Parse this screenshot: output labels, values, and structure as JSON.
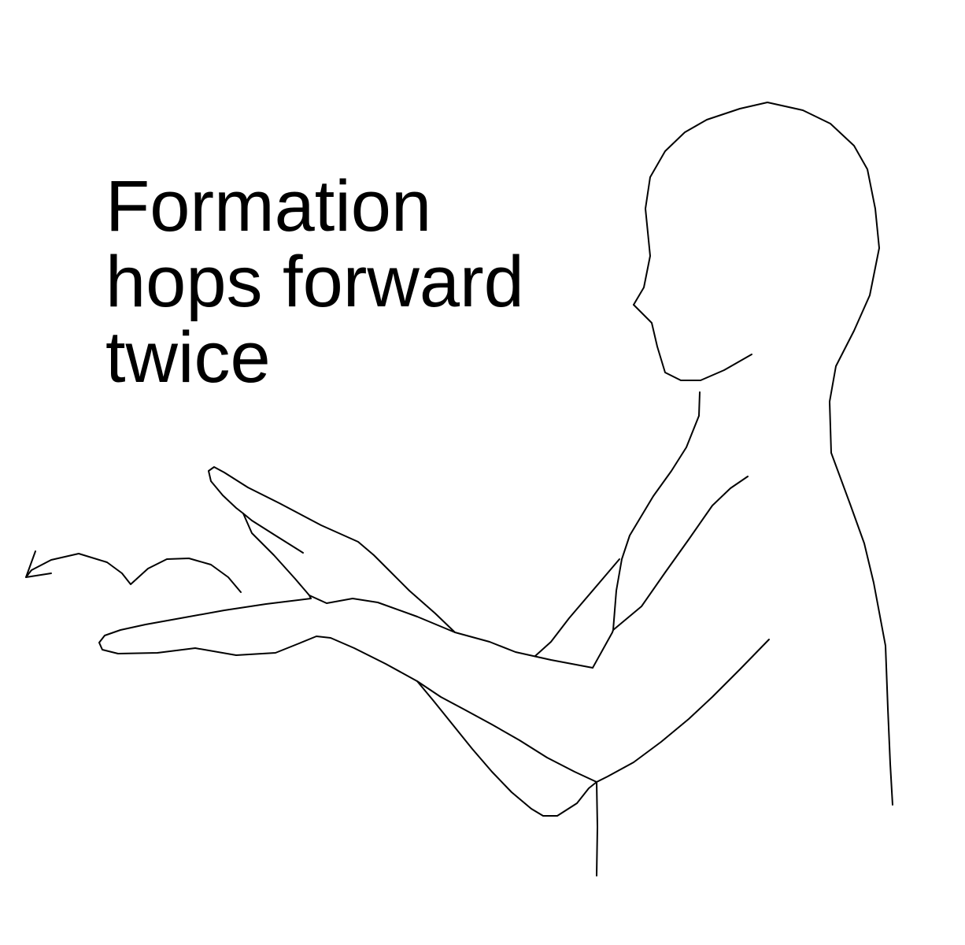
{
  "caption": {
    "lines": [
      "Formation",
      "hops forward",
      "twice"
    ]
  },
  "figure": {
    "subject": "signer-silhouette",
    "motion": "hop-forward-arrow",
    "line_color": "#000000",
    "background_color": "#ffffff"
  }
}
